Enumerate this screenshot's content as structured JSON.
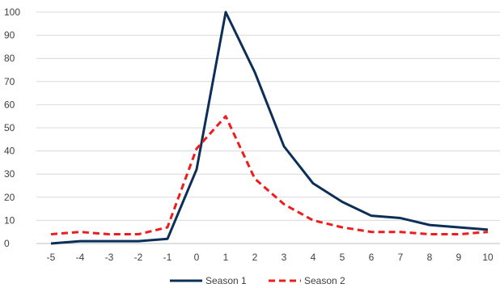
{
  "chart_data": {
    "type": "line",
    "title": "",
    "xlabel": "",
    "ylabel": "",
    "x": [
      -5,
      -4,
      -3,
      -2,
      -1,
      0,
      1,
      2,
      3,
      4,
      5,
      6,
      7,
      8,
      9,
      10
    ],
    "x_tick_labels": [
      "-5",
      "-4",
      "-3",
      "-2",
      "-1",
      "0",
      "1",
      "2",
      "3",
      "4",
      "5",
      "6",
      "7",
      "8",
      "9",
      "10"
    ],
    "ylim": [
      0,
      100
    ],
    "y_ticks": [
      0,
      10,
      20,
      30,
      40,
      50,
      60,
      70,
      80,
      90,
      100
    ],
    "y_tick_labels": [
      "0",
      "10",
      "20",
      "30",
      "40",
      "50",
      "60",
      "70",
      "80",
      "90",
      "100"
    ],
    "grid": true,
    "legend_position": "bottom",
    "series": [
      {
        "name": "Season 1",
        "color": "#0b2f57",
        "style": "solid",
        "values": [
          0,
          1,
          1,
          1,
          2,
          32,
          100,
          74,
          42,
          26,
          18,
          12,
          11,
          8,
          7,
          6
        ]
      },
      {
        "name": "Season 2",
        "color": "#ee1c1c",
        "style": "dashed",
        "values": [
          4,
          5,
          4,
          4,
          7,
          41,
          55,
          28,
          17,
          10,
          7,
          5,
          5,
          4,
          4,
          5
        ]
      }
    ]
  }
}
